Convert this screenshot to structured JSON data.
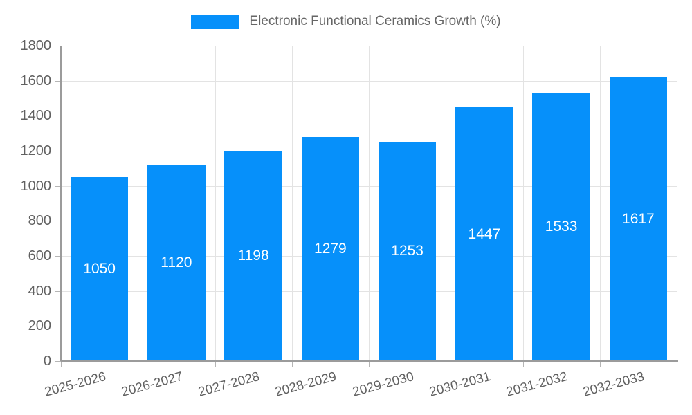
{
  "chart_data": {
    "type": "bar",
    "title": "Electronic Functional Ceramics Growth (%)",
    "categories": [
      "2025-2026",
      "2026-2027",
      "2027-2028",
      "2028-2029",
      "2029-2030",
      "2030-2031",
      "2031-2032",
      "2032-2033"
    ],
    "values": [
      1050,
      1120,
      1198,
      1279,
      1253,
      1447,
      1533,
      1617
    ],
    "xlabel": "",
    "ylabel": "",
    "ylim": [
      0,
      1800
    ],
    "ytick_step": 200,
    "y_tick_labels": [
      "0",
      "200",
      "400",
      "600",
      "800",
      "1000",
      "1200",
      "1400",
      "1600",
      "1800"
    ],
    "grid": true,
    "legend_position": "top",
    "bar_color": "#0690fa",
    "value_label_color": "#ffffff",
    "axis_text_color": "#616161",
    "grid_color": "#e3e3e3",
    "tick_color": "#b5b5b5",
    "axis_line_color": "#9b9b9b",
    "legend_text_color": "#666666"
  },
  "legend": {
    "label": "Electronic Functional Ceramics Growth (%)"
  }
}
